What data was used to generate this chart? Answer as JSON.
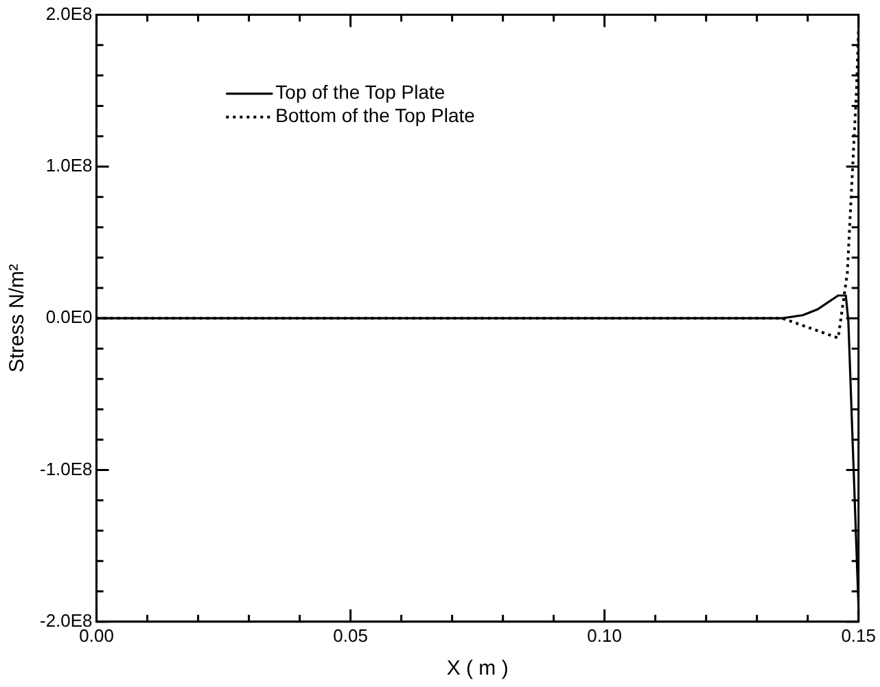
{
  "chart_data": {
    "type": "line",
    "xlabel": "X ( m )",
    "ylabel": "Stress N/m²",
    "xlim": [
      0,
      0.15
    ],
    "ylim": [
      -200000000,
      200000000
    ],
    "xticks": [
      {
        "value": 0,
        "label": "0.00"
      },
      {
        "value": 0.01,
        "label": null
      },
      {
        "value": 0.02,
        "label": null
      },
      {
        "value": 0.03,
        "label": null
      },
      {
        "value": 0.04,
        "label": null
      },
      {
        "value": 0.05,
        "label": "0.05"
      },
      {
        "value": 0.06,
        "label": null
      },
      {
        "value": 0.07,
        "label": null
      },
      {
        "value": 0.08,
        "label": null
      },
      {
        "value": 0.09,
        "label": null
      },
      {
        "value": 0.1,
        "label": "0.10"
      },
      {
        "value": 0.11,
        "label": null
      },
      {
        "value": 0.12,
        "label": null
      },
      {
        "value": 0.13,
        "label": null
      },
      {
        "value": 0.14,
        "label": null
      },
      {
        "value": 0.15,
        "label": "0.15"
      }
    ],
    "yticks": [
      {
        "value": -200000000,
        "label": "-2.0E8"
      },
      {
        "value": -180000000,
        "label": null
      },
      {
        "value": -160000000,
        "label": null
      },
      {
        "value": -140000000,
        "label": null
      },
      {
        "value": -120000000,
        "label": null
      },
      {
        "value": -100000000,
        "label": "-1.0E8"
      },
      {
        "value": -80000000,
        "label": null
      },
      {
        "value": -60000000,
        "label": null
      },
      {
        "value": -40000000,
        "label": null
      },
      {
        "value": -20000000,
        "label": null
      },
      {
        "value": 0,
        "label": "0.0E0"
      },
      {
        "value": 20000000,
        "label": null
      },
      {
        "value": 40000000,
        "label": null
      },
      {
        "value": 60000000,
        "label": null
      },
      {
        "value": 80000000,
        "label": null
      },
      {
        "value": 100000000,
        "label": "1.0E8"
      },
      {
        "value": 120000000,
        "label": null
      },
      {
        "value": 140000000,
        "label": null
      },
      {
        "value": 160000000,
        "label": null
      },
      {
        "value": 180000000,
        "label": null
      },
      {
        "value": 200000000,
        "label": "2.0E8"
      }
    ],
    "grid": false,
    "legend": "top",
    "marker": "none",
    "series": [
      {
        "name": "Top of the Top Plate",
        "color": "#000000",
        "line_style": "solid",
        "x": [
          0,
          0.135,
          0.139,
          0.142,
          0.146,
          0.1475,
          0.148,
          0.15
        ],
        "values": [
          0,
          0,
          2000000,
          6000000,
          15000000,
          15000000,
          -2000000,
          -190000000
        ]
      },
      {
        "name": "Bottom of the Top Plate",
        "color": "#000000",
        "line_style": "dotted",
        "x": [
          0,
          0.135,
          0.146,
          0.1478,
          0.1487,
          0.1496,
          0.15
        ],
        "values": [
          0,
          0,
          -13000000,
          30000000,
          90000000,
          150000000,
          190000000
        ]
      }
    ]
  }
}
